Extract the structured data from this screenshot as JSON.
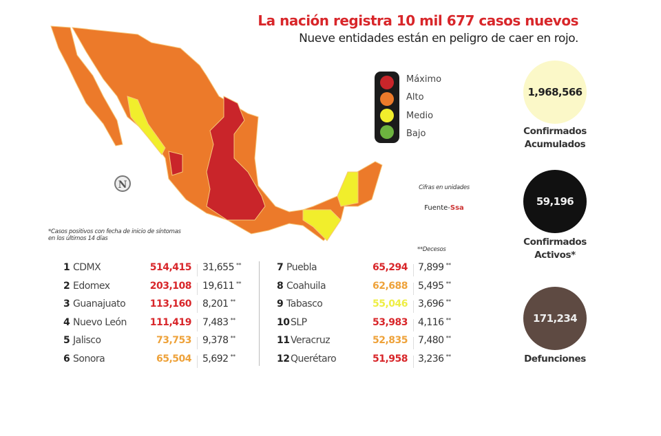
{
  "header": {
    "title": "La nación registra 10 mil 677 casos nuevos",
    "subtitle": "Nueve entidades están en peligro de caer en rojo."
  },
  "legend": {
    "items": [
      {
        "label": "Máximo",
        "color": "#c9252a"
      },
      {
        "label": "Alto",
        "color": "#ec7a2a"
      },
      {
        "label": "Medio",
        "color": "#f1ee2c"
      },
      {
        "label": "Bajo",
        "color": "#6db33f"
      }
    ]
  },
  "notes": {
    "units": "Cifras en unidades",
    "source_prefix": "Fuente-",
    "source": "Ssa",
    "footnote_line1": "*Casos positivos con fecha de inicio de síntomas",
    "footnote_line2": "en los últimos 14 días",
    "deaths_header": "**Decesos",
    "deaths_mark": "**"
  },
  "compass": {
    "letter": "N"
  },
  "stats": [
    {
      "value": "1,968,566",
      "label1": "Confirmados",
      "label2": "Acumulados"
    },
    {
      "value": "59,196",
      "label1": "Confirmados",
      "label2": "Activos*"
    },
    {
      "value": "171,234",
      "label1": "Defunciones",
      "label2": ""
    }
  ],
  "table": {
    "left": [
      {
        "rank": "1",
        "name": "CDMX",
        "cases": "514,415",
        "deaths": "31,655",
        "color": "#d8262a"
      },
      {
        "rank": "2",
        "name": "Edomex",
        "cases": "203,108",
        "deaths": "19,611",
        "color": "#d8262a"
      },
      {
        "rank": "3",
        "name": "Guanajuato",
        "cases": "113,160",
        "deaths": "8,201",
        "color": "#d8262a"
      },
      {
        "rank": "4",
        "name": "Nuevo León",
        "cases": "111,419",
        "deaths": "7,483",
        "color": "#d8262a"
      },
      {
        "rank": "5",
        "name": "Jalisco",
        "cases": "73,753",
        "deaths": "9,378",
        "color": "#eea23a"
      },
      {
        "rank": "6",
        "name": "Sonora",
        "cases": "65,504",
        "deaths": "5,692",
        "color": "#eea23a"
      }
    ],
    "right": [
      {
        "rank": "7",
        "name": "Puebla",
        "cases": "65,294",
        "deaths": "7,899",
        "color": "#d8262a"
      },
      {
        "rank": "8",
        "name": "Coahuila",
        "cases": "62,688",
        "deaths": "5,495",
        "color": "#eea23a"
      },
      {
        "rank": "9",
        "name": "Tabasco",
        "cases": "55,046",
        "deaths": "3,696",
        "color": "#eeee44"
      },
      {
        "rank": "10",
        "name": "SLP",
        "cases": "53,983",
        "deaths": "4,116",
        "color": "#d8262a"
      },
      {
        "rank": "11",
        "name": "Veracruz",
        "cases": "52,835",
        "deaths": "7,480",
        "color": "#eea23a"
      },
      {
        "rank": "12",
        "name": "Querétaro",
        "cases": "51,958",
        "deaths": "3,236",
        "color": "#d8262a"
      }
    ]
  }
}
